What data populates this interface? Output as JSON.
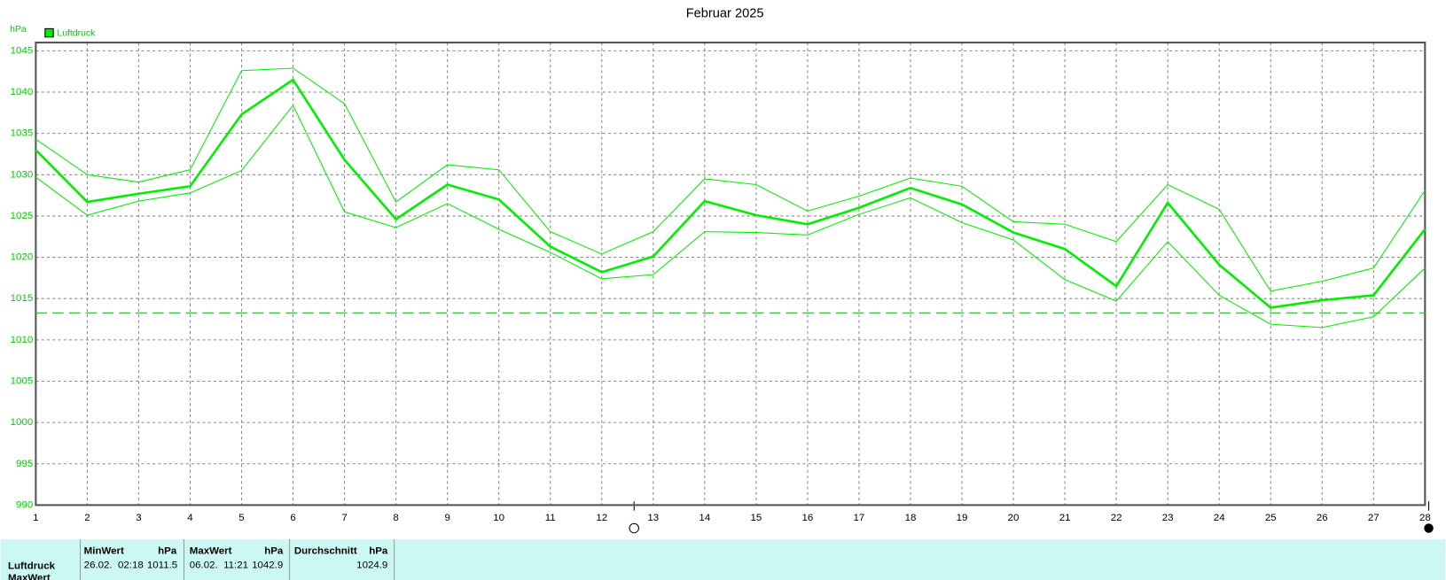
{
  "chart_data": {
    "type": "line",
    "title": "Februar 2025",
    "y_label": "hPa",
    "x": [
      1,
      2,
      3,
      4,
      5,
      6,
      7,
      8,
      9,
      10,
      11,
      12,
      13,
      14,
      15,
      16,
      17,
      18,
      19,
      20,
      21,
      22,
      23,
      24,
      25,
      26,
      27,
      28
    ],
    "xlim": [
      1,
      28
    ],
    "xticks": [
      1,
      2,
      3,
      4,
      5,
      6,
      7,
      8,
      9,
      10,
      11,
      12,
      13,
      14,
      15,
      16,
      17,
      18,
      19,
      20,
      21,
      22,
      23,
      24,
      25,
      26,
      27,
      28
    ],
    "ylim": [
      990,
      1046
    ],
    "yticks": [
      990,
      995,
      1000,
      1005,
      1010,
      1015,
      1020,
      1025,
      1030,
      1035,
      1040,
      1045
    ],
    "grid": true,
    "legend": "top-left",
    "reference": 1013.25,
    "series": [
      {
        "name": "Luftdruck",
        "color": "#00ee00",
        "values": [
          1033.0,
          1026.7,
          1027.7,
          1028.6,
          1037.3,
          1041.5,
          1031.8,
          1024.6,
          1028.8,
          1027.0,
          1021.3,
          1018.2,
          1020.1,
          1026.8,
          1025.1,
          1024.0,
          1026.0,
          1028.4,
          1026.4,
          1023.0,
          1021.0,
          1016.5,
          1026.6,
          1019.1,
          1013.9,
          1014.8,
          1015.4,
          1023.4
        ],
        "max": [
          1034.3,
          1030.0,
          1029.1,
          1030.6,
          1042.6,
          1042.9,
          1038.6,
          1026.7,
          1031.2,
          1030.6,
          1023.1,
          1020.4,
          1023.1,
          1029.5,
          1028.8,
          1025.6,
          1027.4,
          1029.6,
          1028.6,
          1024.3,
          1024.0,
          1021.9,
          1028.8,
          1025.8,
          1015.9,
          1017.1,
          1018.7,
          1028.1
        ],
        "min": [
          1029.7,
          1025.1,
          1026.8,
          1027.8,
          1030.5,
          1038.4,
          1025.5,
          1023.6,
          1026.5,
          1023.4,
          1020.6,
          1017.4,
          1017.9,
          1023.1,
          1023.0,
          1022.7,
          1025.2,
          1027.2,
          1024.2,
          1022.1,
          1017.3,
          1014.7,
          1021.9,
          1015.4,
          1011.9,
          1011.5,
          1012.8,
          1018.7
        ]
      }
    ]
  },
  "table": {
    "columns": [
      {
        "name": "MinWert",
        "unit": "hPa"
      },
      {
        "name": "MaxWert",
        "unit": "hPa"
      },
      {
        "name": "Durchschnitt",
        "unit": "hPa"
      }
    ],
    "rows": [
      {
        "label": "Luftdruck",
        "cells": [
          "26.02.  02:18",
          "1011.5",
          "06.02.  11:21",
          "1042.9",
          "1024.9"
        ]
      }
    ],
    "footer": "MaxWert"
  }
}
